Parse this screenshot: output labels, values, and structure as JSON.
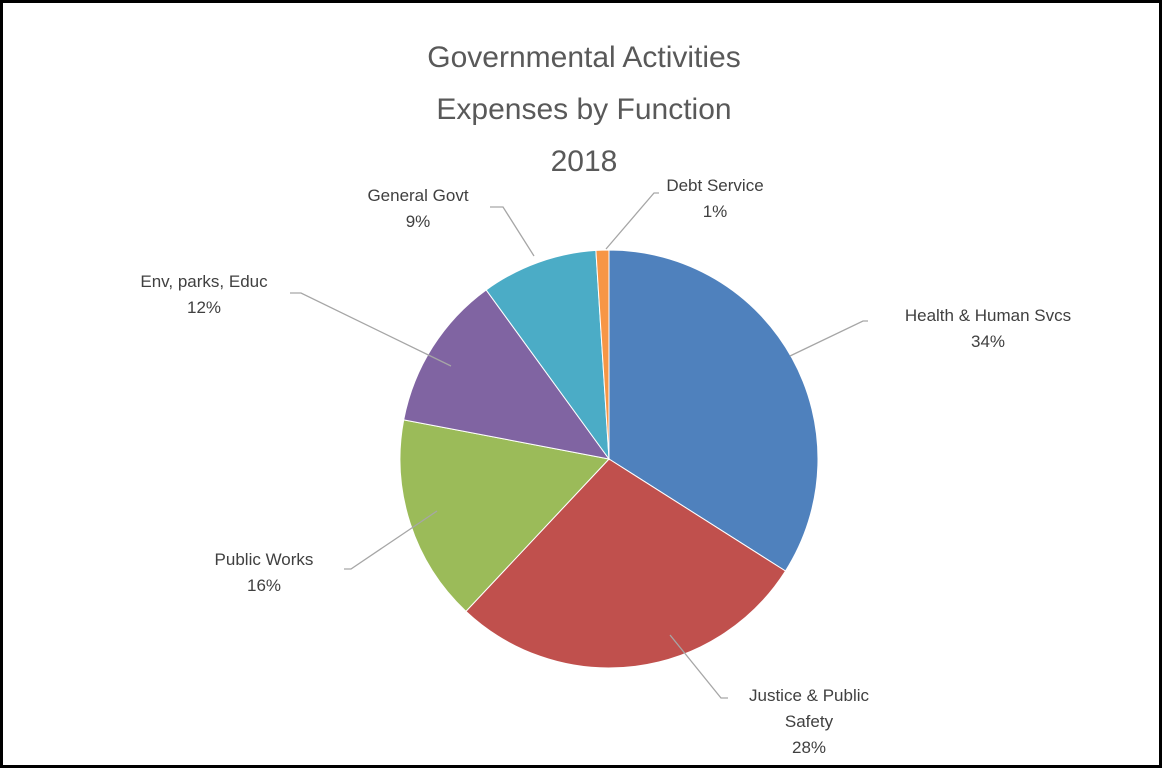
{
  "chart_data": {
    "type": "pie",
    "title": [
      "Governmental Activities",
      "Expenses by Function",
      "2018"
    ],
    "categories": [
      "Health & Human Svcs",
      "Justice & Public Safety",
      "Public Works",
      "Env, parks, Educ",
      "General Govt",
      "Debt Service"
    ],
    "values": [
      34,
      28,
      16,
      12,
      9,
      1
    ],
    "unit": "%",
    "data_labels": [
      {
        "name_lines": [
          "Health & Human Svcs"
        ],
        "percent": "34%"
      },
      {
        "name_lines": [
          "Justice & Public",
          "Safety"
        ],
        "percent": "28%"
      },
      {
        "name_lines": [
          "Public Works"
        ],
        "percent": "16%"
      },
      {
        "name_lines": [
          "Env, parks, Educ"
        ],
        "percent": "12%"
      },
      {
        "name_lines": [
          "General Govt"
        ],
        "percent": "9%"
      },
      {
        "name_lines": [
          "Debt Service"
        ],
        "percent": "1%"
      }
    ],
    "colors": [
      "#4f81bd",
      "#c0504d",
      "#9bbb59",
      "#8064a2",
      "#4bacc6",
      "#f79646"
    ],
    "legend": "none"
  }
}
